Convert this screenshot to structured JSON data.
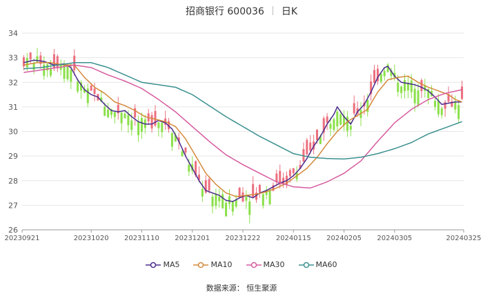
{
  "header": {
    "stock": "招商银行 600036",
    "period": "日K"
  },
  "footer": {
    "source": "数据来源：  恒生聚源"
  },
  "colors": {
    "up": "#ec6f7f",
    "down": "#8be04a",
    "ma5": "#4a2a8c",
    "ma10": "#d4883a",
    "ma30": "#d65a9e",
    "ma60": "#3a8f8f",
    "grid": "#e6e6e6",
    "axis": "#999999"
  },
  "chart_data": {
    "type": "candlestick",
    "ylim": [
      26,
      34
    ],
    "yticks": [
      26,
      27,
      28,
      29,
      30,
      31,
      32,
      33,
      34
    ],
    "grid": "horizontal",
    "legend_position": "bottom-center",
    "x_tick_labels": [
      "20230921",
      "20231020",
      "20231110",
      "20231201",
      "20231222",
      "20240115",
      "20240205",
      "20240305",
      "20240325"
    ],
    "x_tick_index": [
      0,
      20,
      35,
      50,
      65,
      80,
      95,
      110,
      124
    ],
    "series": [
      {
        "name": "MA5",
        "color": "#4a2a8c",
        "key": [
          [
            0,
            32.8
          ],
          [
            3,
            32.9
          ],
          [
            6,
            32.85
          ],
          [
            9,
            32.7
          ],
          [
            12,
            32.75
          ],
          [
            14,
            32.6
          ],
          [
            16,
            32.1
          ],
          [
            18,
            31.7
          ],
          [
            20,
            31.5
          ],
          [
            22,
            31.4
          ],
          [
            24,
            31.1
          ],
          [
            26,
            30.85
          ],
          [
            28,
            30.8
          ],
          [
            30,
            30.85
          ],
          [
            32,
            30.6
          ],
          [
            34,
            30.4
          ],
          [
            36,
            30.3
          ],
          [
            38,
            30.3
          ],
          [
            40,
            30.45
          ],
          [
            42,
            30.35
          ],
          [
            44,
            30.1
          ],
          [
            46,
            29.6
          ],
          [
            48,
            29.0
          ],
          [
            50,
            28.5
          ],
          [
            52,
            28.0
          ],
          [
            54,
            27.6
          ],
          [
            56,
            27.5
          ],
          [
            58,
            27.4
          ],
          [
            60,
            27.2
          ],
          [
            62,
            27.15
          ],
          [
            64,
            27.3
          ],
          [
            66,
            27.4
          ],
          [
            68,
            27.3
          ],
          [
            70,
            27.5
          ],
          [
            72,
            27.6
          ],
          [
            74,
            27.75
          ],
          [
            76,
            27.9
          ],
          [
            78,
            28.0
          ],
          [
            80,
            28.2
          ],
          [
            82,
            28.5
          ],
          [
            84,
            28.9
          ],
          [
            86,
            29.4
          ],
          [
            88,
            29.8
          ],
          [
            90,
            30.3
          ],
          [
            92,
            30.7
          ],
          [
            93,
            31.0
          ],
          [
            95,
            30.6
          ],
          [
            97,
            30.3
          ],
          [
            99,
            30.8
          ],
          [
            101,
            31.1
          ],
          [
            103,
            31.6
          ],
          [
            105,
            32.2
          ],
          [
            107,
            32.6
          ],
          [
            108,
            32.65
          ],
          [
            110,
            32.25
          ],
          [
            112,
            32.0
          ],
          [
            114,
            31.95
          ],
          [
            116,
            31.9
          ],
          [
            118,
            31.8
          ],
          [
            120,
            31.65
          ],
          [
            122,
            31.4
          ],
          [
            124,
            31.1
          ],
          [
            126,
            31.15
          ],
          [
            128,
            31.2
          ],
          [
            130,
            31.2
          ]
        ]
      },
      {
        "name": "MA10",
        "color": "#d4883a",
        "key": [
          [
            0,
            32.7
          ],
          [
            4,
            32.8
          ],
          [
            8,
            32.8
          ],
          [
            12,
            32.7
          ],
          [
            15,
            32.7
          ],
          [
            18,
            32.2
          ],
          [
            21,
            31.8
          ],
          [
            24,
            31.55
          ],
          [
            27,
            31.2
          ],
          [
            30,
            31.05
          ],
          [
            33,
            30.85
          ],
          [
            36,
            30.6
          ],
          [
            39,
            30.5
          ],
          [
            42,
            30.4
          ],
          [
            45,
            30.2
          ],
          [
            48,
            29.7
          ],
          [
            51,
            29.0
          ],
          [
            54,
            28.3
          ],
          [
            57,
            27.85
          ],
          [
            60,
            27.5
          ],
          [
            63,
            27.35
          ],
          [
            66,
            27.4
          ],
          [
            69,
            27.45
          ],
          [
            72,
            27.55
          ],
          [
            75,
            27.7
          ],
          [
            78,
            27.9
          ],
          [
            81,
            28.2
          ],
          [
            84,
            28.5
          ],
          [
            87,
            28.95
          ],
          [
            90,
            29.5
          ],
          [
            93,
            30.0
          ],
          [
            96,
            30.4
          ],
          [
            99,
            30.65
          ],
          [
            102,
            30.9
          ],
          [
            105,
            31.6
          ],
          [
            108,
            32.1
          ],
          [
            111,
            32.2
          ],
          [
            114,
            32.25
          ],
          [
            117,
            32.0
          ],
          [
            120,
            31.8
          ],
          [
            123,
            31.65
          ],
          [
            126,
            31.5
          ],
          [
            128,
            31.3
          ],
          [
            130,
            31.2
          ]
        ]
      },
      {
        "name": "MA30",
        "color": "#d65a9e",
        "key": [
          [
            0,
            32.4
          ],
          [
            5,
            32.5
          ],
          [
            10,
            32.6
          ],
          [
            15,
            32.7
          ],
          [
            20,
            32.6
          ],
          [
            25,
            32.3
          ],
          [
            30,
            32.05
          ],
          [
            35,
            31.75
          ],
          [
            40,
            31.3
          ],
          [
            45,
            30.8
          ],
          [
            50,
            30.2
          ],
          [
            55,
            29.6
          ],
          [
            60,
            29.05
          ],
          [
            65,
            28.65
          ],
          [
            70,
            28.3
          ],
          [
            75,
            27.95
          ],
          [
            80,
            27.75
          ],
          [
            85,
            27.7
          ],
          [
            90,
            27.95
          ],
          [
            95,
            28.3
          ],
          [
            100,
            28.8
          ],
          [
            105,
            29.6
          ],
          [
            110,
            30.35
          ],
          [
            115,
            30.9
          ],
          [
            120,
            31.3
          ],
          [
            125,
            31.55
          ],
          [
            130,
            31.7
          ]
        ]
      },
      {
        "name": "MA60",
        "color": "#3a8f8f",
        "key": [
          [
            0,
            32.55
          ],
          [
            5,
            32.6
          ],
          [
            10,
            32.7
          ],
          [
            15,
            32.8
          ],
          [
            20,
            32.8
          ],
          [
            25,
            32.6
          ],
          [
            30,
            32.3
          ],
          [
            35,
            32.0
          ],
          [
            40,
            31.9
          ],
          [
            45,
            31.8
          ],
          [
            50,
            31.5
          ],
          [
            55,
            31.05
          ],
          [
            60,
            30.6
          ],
          [
            65,
            30.2
          ],
          [
            70,
            29.8
          ],
          [
            75,
            29.45
          ],
          [
            80,
            29.1
          ],
          [
            85,
            28.95
          ],
          [
            90,
            28.9
          ],
          [
            95,
            28.88
          ],
          [
            100,
            28.95
          ],
          [
            105,
            29.1
          ],
          [
            110,
            29.3
          ],
          [
            115,
            29.55
          ],
          [
            120,
            29.9
          ],
          [
            125,
            30.15
          ],
          [
            130,
            30.4
          ]
        ]
      }
    ],
    "candles_note": "approximate daily OHLC following MA5 path"
  },
  "legend": [
    {
      "label": "MA5",
      "color": "#4a2a8c"
    },
    {
      "label": "MA10",
      "color": "#d4883a"
    },
    {
      "label": "MA30",
      "color": "#d65a9e"
    },
    {
      "label": "MA60",
      "color": "#3a8f8f"
    }
  ]
}
